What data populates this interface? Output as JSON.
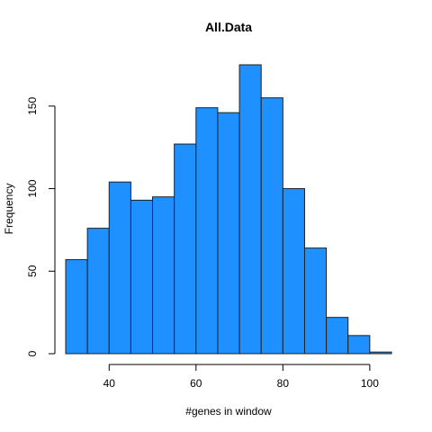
{
  "chart_data": {
    "type": "bar",
    "title": "All.Data",
    "xlabel": "#genes in window",
    "ylabel": "Frequency",
    "bar_color": "#1E90FF",
    "bins": [
      {
        "start": 30,
        "end": 35,
        "count": 57
      },
      {
        "start": 35,
        "end": 40,
        "count": 76
      },
      {
        "start": 40,
        "end": 45,
        "count": 104
      },
      {
        "start": 45,
        "end": 50,
        "count": 93
      },
      {
        "start": 50,
        "end": 55,
        "count": 95
      },
      {
        "start": 55,
        "end": 60,
        "count": 127
      },
      {
        "start": 60,
        "end": 65,
        "count": 149
      },
      {
        "start": 65,
        "end": 70,
        "count": 146
      },
      {
        "start": 70,
        "end": 75,
        "count": 175
      },
      {
        "start": 75,
        "end": 80,
        "count": 155
      },
      {
        "start": 80,
        "end": 85,
        "count": 100
      },
      {
        "start": 85,
        "end": 90,
        "count": 64
      },
      {
        "start": 90,
        "end": 95,
        "count": 22
      },
      {
        "start": 95,
        "end": 100,
        "count": 11
      },
      {
        "start": 100,
        "end": 105,
        "count": 1
      }
    ],
    "xticks": [
      40,
      60,
      80,
      100
    ],
    "yticks": [
      0,
      50,
      100,
      150
    ],
    "xlim": [
      30,
      105
    ],
    "ylim": [
      0,
      175
    ]
  }
}
